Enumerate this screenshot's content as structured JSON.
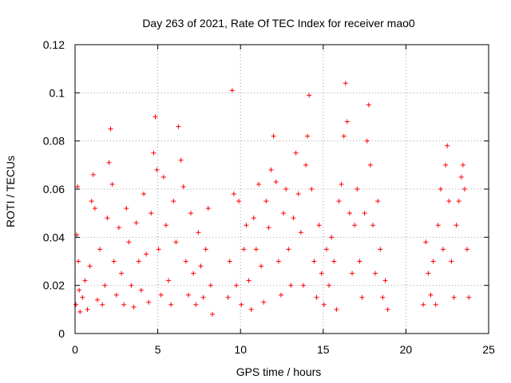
{
  "chart_data": {
    "type": "scatter",
    "title": "Day 263 of 2021, Rate Of TEC Index for receiver mao0",
    "xlabel": "GPS time / hours",
    "ylabel": "ROTI / TECUs",
    "xlim": [
      0,
      25
    ],
    "ylim": [
      0,
      0.12
    ],
    "x_ticks": [
      0,
      5,
      10,
      15,
      20,
      25
    ],
    "x_tick_labels": [
      "0",
      "5",
      "10",
      "15",
      "20",
      "25"
    ],
    "y_ticks": [
      0,
      0.02,
      0.04,
      0.06,
      0.08,
      0.1,
      0.12
    ],
    "y_tick_labels": [
      "0",
      "0.02",
      "0.04",
      "0.06",
      "0.08",
      "0.1",
      "0.12"
    ],
    "grid": true,
    "marker": "plus",
    "color": "#ff0000",
    "series": [
      {
        "points": [
          [
            0.05,
            0.012
          ],
          [
            0.1,
            0.041
          ],
          [
            0.15,
            0.061
          ],
          [
            0.2,
            0.03
          ],
          [
            0.25,
            0.018
          ],
          [
            0.3,
            0.009
          ],
          [
            0.45,
            0.015
          ],
          [
            0.6,
            0.022
          ],
          [
            0.75,
            0.01
          ],
          [
            0.9,
            0.028
          ],
          [
            1.0,
            0.055
          ],
          [
            1.1,
            0.066
          ],
          [
            1.2,
            0.052
          ],
          [
            1.35,
            0.014
          ],
          [
            1.5,
            0.035
          ],
          [
            1.65,
            0.012
          ],
          [
            1.8,
            0.02
          ],
          [
            1.95,
            0.048
          ],
          [
            2.05,
            0.071
          ],
          [
            2.15,
            0.085
          ],
          [
            2.25,
            0.062
          ],
          [
            2.35,
            0.03
          ],
          [
            2.5,
            0.016
          ],
          [
            2.65,
            0.044
          ],
          [
            2.8,
            0.025
          ],
          [
            2.95,
            0.012
          ],
          [
            3.1,
            0.052
          ],
          [
            3.25,
            0.038
          ],
          [
            3.4,
            0.02
          ],
          [
            3.55,
            0.011
          ],
          [
            3.7,
            0.046
          ],
          [
            3.85,
            0.03
          ],
          [
            4.0,
            0.018
          ],
          [
            4.15,
            0.058
          ],
          [
            4.3,
            0.033
          ],
          [
            4.45,
            0.013
          ],
          [
            4.6,
            0.05
          ],
          [
            4.75,
            0.075
          ],
          [
            4.85,
            0.09
          ],
          [
            4.95,
            0.068
          ],
          [
            5.05,
            0.035
          ],
          [
            5.2,
            0.016
          ],
          [
            5.35,
            0.065
          ],
          [
            5.5,
            0.045
          ],
          [
            5.65,
            0.022
          ],
          [
            5.8,
            0.012
          ],
          [
            5.95,
            0.055
          ],
          [
            6.1,
            0.038
          ],
          [
            6.25,
            0.086
          ],
          [
            6.4,
            0.072
          ],
          [
            6.55,
            0.061
          ],
          [
            6.7,
            0.03
          ],
          [
            6.85,
            0.016
          ],
          [
            7.0,
            0.05
          ],
          [
            7.15,
            0.025
          ],
          [
            7.3,
            0.012
          ],
          [
            7.45,
            0.042
          ],
          [
            7.6,
            0.028
          ],
          [
            7.75,
            0.015
          ],
          [
            7.9,
            0.035
          ],
          [
            8.05,
            0.052
          ],
          [
            8.2,
            0.02
          ],
          [
            8.3,
            0.008
          ],
          [
            9.25,
            0.015
          ],
          [
            9.35,
            0.03
          ],
          [
            9.5,
            0.101
          ],
          [
            9.6,
            0.058
          ],
          [
            9.75,
            0.02
          ],
          [
            9.9,
            0.055
          ],
          [
            10.05,
            0.012
          ],
          [
            10.2,
            0.035
          ],
          [
            10.35,
            0.045
          ],
          [
            10.5,
            0.022
          ],
          [
            10.65,
            0.01
          ],
          [
            10.8,
            0.048
          ],
          [
            10.95,
            0.035
          ],
          [
            11.1,
            0.062
          ],
          [
            11.25,
            0.028
          ],
          [
            11.4,
            0.013
          ],
          [
            11.55,
            0.055
          ],
          [
            11.7,
            0.044
          ],
          [
            11.85,
            0.068
          ],
          [
            12.0,
            0.082
          ],
          [
            12.15,
            0.063
          ],
          [
            12.3,
            0.03
          ],
          [
            12.45,
            0.016
          ],
          [
            12.6,
            0.05
          ],
          [
            12.75,
            0.06
          ],
          [
            12.9,
            0.035
          ],
          [
            13.05,
            0.02
          ],
          [
            13.2,
            0.048
          ],
          [
            13.35,
            0.075
          ],
          [
            13.5,
            0.058
          ],
          [
            13.65,
            0.042
          ],
          [
            13.8,
            0.02
          ],
          [
            13.95,
            0.07
          ],
          [
            14.05,
            0.082
          ],
          [
            14.15,
            0.099
          ],
          [
            14.3,
            0.06
          ],
          [
            14.45,
            0.03
          ],
          [
            14.6,
            0.015
          ],
          [
            14.75,
            0.045
          ],
          [
            14.9,
            0.025
          ],
          [
            15.05,
            0.012
          ],
          [
            15.2,
            0.035
          ],
          [
            15.35,
            0.02
          ],
          [
            15.5,
            0.04
          ],
          [
            15.65,
            0.03
          ],
          [
            15.8,
            0.01
          ],
          [
            15.95,
            0.055
          ],
          [
            16.1,
            0.062
          ],
          [
            16.25,
            0.082
          ],
          [
            16.35,
            0.104
          ],
          [
            16.45,
            0.088
          ],
          [
            16.6,
            0.05
          ],
          [
            16.75,
            0.025
          ],
          [
            16.9,
            0.045
          ],
          [
            17.05,
            0.06
          ],
          [
            17.2,
            0.03
          ],
          [
            17.35,
            0.015
          ],
          [
            17.5,
            0.05
          ],
          [
            17.65,
            0.08
          ],
          [
            17.75,
            0.095
          ],
          [
            17.85,
            0.07
          ],
          [
            18.0,
            0.045
          ],
          [
            18.15,
            0.025
          ],
          [
            18.3,
            0.055
          ],
          [
            18.45,
            0.035
          ],
          [
            18.6,
            0.015
          ],
          [
            18.75,
            0.022
          ],
          [
            18.9,
            0.01
          ],
          [
            21.05,
            0.012
          ],
          [
            21.2,
            0.038
          ],
          [
            21.35,
            0.025
          ],
          [
            21.5,
            0.016
          ],
          [
            21.65,
            0.03
          ],
          [
            21.8,
            0.012
          ],
          [
            21.95,
            0.045
          ],
          [
            22.1,
            0.06
          ],
          [
            22.25,
            0.035
          ],
          [
            22.4,
            0.07
          ],
          [
            22.5,
            0.078
          ],
          [
            22.6,
            0.055
          ],
          [
            22.75,
            0.03
          ],
          [
            22.9,
            0.015
          ],
          [
            23.05,
            0.045
          ],
          [
            23.2,
            0.055
          ],
          [
            23.35,
            0.065
          ],
          [
            23.45,
            0.07
          ],
          [
            23.55,
            0.06
          ],
          [
            23.7,
            0.035
          ],
          [
            23.8,
            0.015
          ]
        ]
      }
    ]
  }
}
